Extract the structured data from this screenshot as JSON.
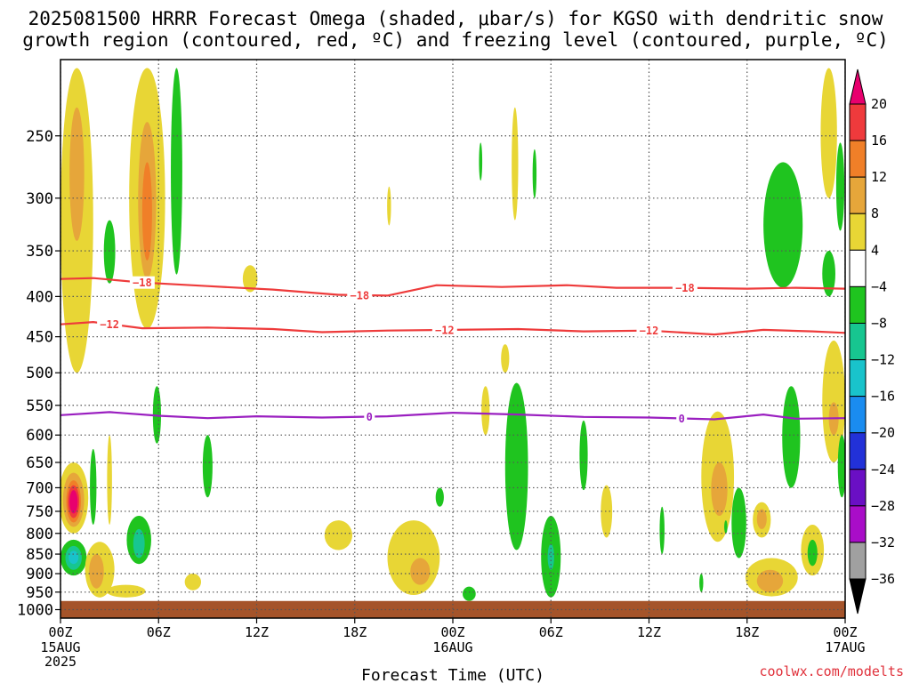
{
  "chart_data": {
    "type": "heatmap",
    "title_line1": "2025081500 HRRR Forecast Omega (shaded, μbar/s) for KGSO with dendritic snow",
    "title_line2": "growth region (contoured, red, ºC) and freezing level (contoured, purple, ºC)",
    "xlabel": "Forecast Time (UTC)",
    "credit": "coolwx.com/modelts",
    "x_ticks": [
      {
        "hour": 0,
        "label": "00Z",
        "sub": [
          "15AUG",
          "2025"
        ]
      },
      {
        "hour": 6,
        "label": "06Z",
        "sub": []
      },
      {
        "hour": 12,
        "label": "12Z",
        "sub": []
      },
      {
        "hour": 18,
        "label": "18Z",
        "sub": []
      },
      {
        "hour": 24,
        "label": "00Z",
        "sub": [
          "16AUG"
        ]
      },
      {
        "hour": 30,
        "label": "06Z",
        "sub": []
      },
      {
        "hour": 36,
        "label": "12Z",
        "sub": []
      },
      {
        "hour": 42,
        "label": "18Z",
        "sub": []
      },
      {
        "hour": 48,
        "label": "00Z",
        "sub": [
          "17AUG"
        ]
      }
    ],
    "x_range": [
      0,
      48
    ],
    "y_range_hpa": [
      200,
      1025
    ],
    "y_ticks": [
      "250",
      "300",
      "350",
      "400",
      "450",
      "500",
      "550",
      "600",
      "650",
      "700",
      "750",
      "800",
      "850",
      "900",
      "950",
      "1000"
    ],
    "grid": true,
    "colorbar": {
      "labels": [
        "20",
        "16",
        "12",
        "8",
        "4",
        "−4",
        "−8",
        "−12",
        "−16",
        "−20",
        "−24",
        "−28",
        "−32",
        "−36"
      ],
      "colors": [
        "#e8006e",
        "#ef3a3c",
        "#f07f28",
        "#e6a63a",
        "#e8d635",
        "#ffffff",
        "#1fc41f",
        "#17c690",
        "#19c3cb",
        "#1a8cf0",
        "#2231d8",
        "#6a0fc4",
        "#a90dc8",
        "#a0a0a0",
        "#000000"
      ]
    },
    "contours": [
      {
        "name": "dgz-18",
        "value": -18,
        "color": "#ee3b3b",
        "labels": [
          "−18",
          "−18",
          "−18"
        ],
        "label_hours": [
          5.0,
          18.3,
          38.2
        ],
        "points": [
          [
            0,
            380
          ],
          [
            2,
            379
          ],
          [
            5,
            384
          ],
          [
            9,
            388
          ],
          [
            13,
            392
          ],
          [
            17,
            398
          ],
          [
            20,
            399
          ],
          [
            21.5,
            393
          ],
          [
            23,
            387
          ],
          [
            27,
            389
          ],
          [
            31,
            387
          ],
          [
            34,
            390
          ],
          [
            38,
            390
          ],
          [
            42,
            391
          ],
          [
            45,
            390
          ],
          [
            48,
            391
          ]
        ]
      },
      {
        "name": "dgz-12",
        "value": -12,
        "color": "#ee3b3b",
        "labels": [
          "−12",
          "−12",
          "−12"
        ],
        "label_hours": [
          3.0,
          23.5,
          36.0
        ],
        "points": [
          [
            0,
            434
          ],
          [
            2,
            431
          ],
          [
            5,
            439
          ],
          [
            9,
            438
          ],
          [
            13,
            440
          ],
          [
            16,
            444
          ],
          [
            20,
            442
          ],
          [
            24,
            441
          ],
          [
            28,
            440
          ],
          [
            32,
            443
          ],
          [
            36,
            442
          ],
          [
            40,
            447
          ],
          [
            43,
            441
          ],
          [
            46,
            443
          ],
          [
            48,
            445
          ]
        ]
      },
      {
        "name": "freezing-level",
        "value": 0,
        "color": "#9a1fc0",
        "labels": [
          "0",
          "0"
        ],
        "label_hours": [
          18.9,
          38.0
        ],
        "points": [
          [
            0,
            566
          ],
          [
            3,
            561
          ],
          [
            6,
            567
          ],
          [
            9,
            571
          ],
          [
            12,
            568
          ],
          [
            16,
            570
          ],
          [
            20,
            568
          ],
          [
            24,
            562
          ],
          [
            28,
            565
          ],
          [
            32,
            569
          ],
          [
            36,
            570
          ],
          [
            40,
            573
          ],
          [
            43,
            565
          ],
          [
            45,
            572
          ],
          [
            48,
            571
          ]
        ]
      }
    ],
    "omega_regions": [
      {
        "hour": 1.0,
        "p_top": 205,
        "p_bot": 500,
        "half_width": 1.0,
        "fill": "#e8d635"
      },
      {
        "hour": 1.0,
        "p_top": 230,
        "p_bot": 340,
        "half_width": 0.45,
        "fill": "#e6a63a"
      },
      {
        "hour": 5.3,
        "p_top": 205,
        "p_bot": 440,
        "half_width": 1.1,
        "fill": "#e8d635"
      },
      {
        "hour": 5.3,
        "p_top": 240,
        "p_bot": 380,
        "half_width": 0.55,
        "fill": "#e6a63a"
      },
      {
        "hour": 5.3,
        "p_top": 270,
        "p_bot": 360,
        "half_width": 0.3,
        "fill": "#f07f28"
      },
      {
        "hour": 7.1,
        "p_top": 205,
        "p_bot": 375,
        "half_width": 0.35,
        "fill": "#1fc41f"
      },
      {
        "hour": 3.0,
        "p_top": 320,
        "p_bot": 385,
        "half_width": 0.35,
        "fill": "#1fc41f"
      },
      {
        "hour": 11.6,
        "p_top": 365,
        "p_bot": 395,
        "half_width": 0.45,
        "fill": "#e8d635"
      },
      {
        "hour": 20.1,
        "p_top": 290,
        "p_bot": 325,
        "half_width": 0.12,
        "fill": "#e8d635"
      },
      {
        "hour": 25.7,
        "p_top": 255,
        "p_bot": 285,
        "half_width": 0.1,
        "fill": "#1fc41f"
      },
      {
        "hour": 27.8,
        "p_top": 230,
        "p_bot": 320,
        "half_width": 0.2,
        "fill": "#e8d635"
      },
      {
        "hour": 29.0,
        "p_top": 260,
        "p_bot": 300,
        "half_width": 0.12,
        "fill": "#1fc41f"
      },
      {
        "hour": 27.2,
        "p_top": 460,
        "p_bot": 500,
        "half_width": 0.25,
        "fill": "#e8d635"
      },
      {
        "hour": 44.2,
        "p_top": 270,
        "p_bot": 390,
        "half_width": 1.2,
        "fill": "#1fc41f"
      },
      {
        "hour": 47.0,
        "p_top": 205,
        "p_bot": 300,
        "half_width": 0.5,
        "fill": "#e8d635"
      },
      {
        "hour": 47.7,
        "p_top": 255,
        "p_bot": 330,
        "half_width": 0.25,
        "fill": "#1fc41f"
      },
      {
        "hour": 47.0,
        "p_top": 350,
        "p_bot": 400,
        "half_width": 0.4,
        "fill": "#1fc41f"
      },
      {
        "hour": 47.3,
        "p_top": 455,
        "p_bot": 650,
        "half_width": 0.7,
        "fill": "#e8d635"
      },
      {
        "hour": 47.3,
        "p_top": 545,
        "p_bot": 600,
        "half_width": 0.3,
        "fill": "#e6a63a"
      },
      {
        "hour": 0.8,
        "p_top": 650,
        "p_bot": 800,
        "half_width": 0.9,
        "fill": "#e8d635"
      },
      {
        "hour": 0.8,
        "p_top": 670,
        "p_bot": 785,
        "half_width": 0.65,
        "fill": "#e6a63a"
      },
      {
        "hour": 0.8,
        "p_top": 685,
        "p_bot": 775,
        "half_width": 0.45,
        "fill": "#f07f28"
      },
      {
        "hour": 0.8,
        "p_top": 695,
        "p_bot": 765,
        "half_width": 0.35,
        "fill": "#ef3a3c"
      },
      {
        "hour": 0.8,
        "p_top": 705,
        "p_bot": 755,
        "half_width": 0.25,
        "fill": "#e8006e"
      },
      {
        "hour": 0.8,
        "p_top": 815,
        "p_bot": 905,
        "half_width": 0.8,
        "fill": "#1fc41f"
      },
      {
        "hour": 0.8,
        "p_top": 830,
        "p_bot": 890,
        "half_width": 0.5,
        "fill": "#17c690"
      },
      {
        "hour": 0.8,
        "p_top": 842,
        "p_bot": 875,
        "half_width": 0.3,
        "fill": "#19c3cb"
      },
      {
        "hour": 2.4,
        "p_top": 820,
        "p_bot": 965,
        "half_width": 0.9,
        "fill": "#e8d635"
      },
      {
        "hour": 2.2,
        "p_top": 850,
        "p_bot": 940,
        "half_width": 0.45,
        "fill": "#e6a63a"
      },
      {
        "hour": 4.0,
        "p_top": 930,
        "p_bot": 965,
        "half_width": 1.2,
        "fill": "#e8d635"
      },
      {
        "hour": 2.0,
        "p_top": 625,
        "p_bot": 780,
        "half_width": 0.2,
        "fill": "#1fc41f"
      },
      {
        "hour": 3.0,
        "p_top": 600,
        "p_bot": 780,
        "half_width": 0.15,
        "fill": "#e8d635"
      },
      {
        "hour": 4.8,
        "p_top": 760,
        "p_bot": 875,
        "half_width": 0.75,
        "fill": "#1fc41f"
      },
      {
        "hour": 4.8,
        "p_top": 790,
        "p_bot": 860,
        "half_width": 0.35,
        "fill": "#17c690"
      },
      {
        "hour": 5.9,
        "p_top": 520,
        "p_bot": 615,
        "half_width": 0.25,
        "fill": "#1fc41f"
      },
      {
        "hour": 9.0,
        "p_top": 600,
        "p_bot": 720,
        "half_width": 0.3,
        "fill": "#1fc41f"
      },
      {
        "hour": 8.1,
        "p_top": 900,
        "p_bot": 945,
        "half_width": 0.5,
        "fill": "#e8d635"
      },
      {
        "hour": 17.0,
        "p_top": 770,
        "p_bot": 840,
        "half_width": 0.85,
        "fill": "#e8d635"
      },
      {
        "hour": 21.6,
        "p_top": 770,
        "p_bot": 958,
        "half_width": 1.6,
        "fill": "#e8d635"
      },
      {
        "hour": 22.0,
        "p_top": 860,
        "p_bot": 930,
        "half_width": 0.6,
        "fill": "#e6a63a"
      },
      {
        "hour": 23.2,
        "p_top": 700,
        "p_bot": 740,
        "half_width": 0.25,
        "fill": "#1fc41f"
      },
      {
        "hour": 25.0,
        "p_top": 935,
        "p_bot": 975,
        "half_width": 0.4,
        "fill": "#1fc41f"
      },
      {
        "hour": 27.9,
        "p_top": 515,
        "p_bot": 840,
        "half_width": 0.7,
        "fill": "#1fc41f"
      },
      {
        "hour": 26.0,
        "p_top": 520,
        "p_bot": 600,
        "half_width": 0.25,
        "fill": "#e8d635"
      },
      {
        "hour": 30.0,
        "p_top": 760,
        "p_bot": 965,
        "half_width": 0.6,
        "fill": "#1fc41f"
      },
      {
        "hour": 30.0,
        "p_top": 825,
        "p_bot": 890,
        "half_width": 0.2,
        "fill": "#17c690"
      },
      {
        "hour": 32.0,
        "p_top": 575,
        "p_bot": 705,
        "half_width": 0.25,
        "fill": "#1fc41f"
      },
      {
        "hour": 33.4,
        "p_top": 695,
        "p_bot": 810,
        "half_width": 0.35,
        "fill": "#e8d635"
      },
      {
        "hour": 36.8,
        "p_top": 740,
        "p_bot": 850,
        "half_width": 0.15,
        "fill": "#1fc41f"
      },
      {
        "hour": 40.2,
        "p_top": 560,
        "p_bot": 820,
        "half_width": 1.0,
        "fill": "#e8d635"
      },
      {
        "hour": 40.3,
        "p_top": 650,
        "p_bot": 760,
        "half_width": 0.5,
        "fill": "#e6a63a"
      },
      {
        "hour": 41.5,
        "p_top": 700,
        "p_bot": 860,
        "half_width": 0.45,
        "fill": "#1fc41f"
      },
      {
        "hour": 44.7,
        "p_top": 520,
        "p_bot": 700,
        "half_width": 0.55,
        "fill": "#1fc41f"
      },
      {
        "hour": 42.9,
        "p_top": 730,
        "p_bot": 810,
        "half_width": 0.55,
        "fill": "#e8d635"
      },
      {
        "hour": 42.9,
        "p_top": 745,
        "p_bot": 790,
        "half_width": 0.3,
        "fill": "#e6a63a"
      },
      {
        "hour": 43.5,
        "p_top": 860,
        "p_bot": 962,
        "half_width": 1.6,
        "fill": "#e8d635"
      },
      {
        "hour": 43.4,
        "p_top": 890,
        "p_bot": 950,
        "half_width": 0.8,
        "fill": "#e6a63a"
      },
      {
        "hour": 46.0,
        "p_top": 780,
        "p_bot": 905,
        "half_width": 0.7,
        "fill": "#e8d635"
      },
      {
        "hour": 46.0,
        "p_top": 815,
        "p_bot": 880,
        "half_width": 0.3,
        "fill": "#1fc41f"
      },
      {
        "hour": 47.8,
        "p_top": 600,
        "p_bot": 720,
        "half_width": 0.25,
        "fill": "#1fc41f"
      },
      {
        "hour": 40.7,
        "p_top": 770,
        "p_bot": 800,
        "half_width": 0.1,
        "fill": "#1fc41f"
      },
      {
        "hour": 39.2,
        "p_top": 900,
        "p_bot": 950,
        "half_width": 0.12,
        "fill": "#1fc41f"
      }
    ],
    "ground": {
      "p_top": 975,
      "color": "#a5542a"
    }
  }
}
